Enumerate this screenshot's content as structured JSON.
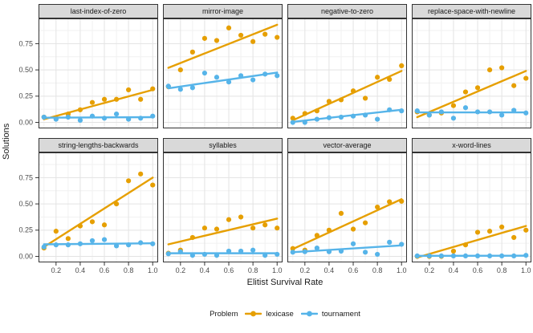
{
  "figure": {
    "ylabel": "Solutions",
    "xlabel": "Elitist Survival Rate",
    "axes": {
      "xlim": [
        0.055,
        1.045
      ],
      "ylim": [
        -0.057,
        0.99
      ],
      "xticks": [
        0.2,
        0.4,
        0.6,
        0.8,
        1.0
      ],
      "xtick_labels": [
        "0.2",
        "0.4",
        "0.6",
        "0.8",
        "1.0"
      ],
      "yticks": [
        0.0,
        0.25,
        0.5,
        0.75
      ],
      "ytick_labels": [
        "0.00",
        "0.25",
        "0.50",
        "0.75"
      ],
      "x_minor": [
        0.1,
        0.3,
        0.5,
        0.7,
        0.9
      ],
      "y_minor": [
        0.125,
        0.375,
        0.625,
        0.875
      ],
      "grid": "on"
    },
    "legend": {
      "title": "Problem",
      "position": "bottom",
      "series": [
        {
          "name": "lexicase",
          "color": "#E69F00"
        },
        {
          "name": "tournament",
          "color": "#56B4E9"
        }
      ]
    },
    "colors": {
      "grid_major": "#E3E3E3",
      "grid_minor": "#F1F1F1",
      "panel_border": "#333333",
      "strip_fill": "#D9D9D9",
      "tick": "#333333"
    }
  },
  "chart_data": [
    {
      "type": "scatter",
      "title": "last-index-of-zero",
      "x": [
        0.1,
        0.2,
        0.3,
        0.4,
        0.5,
        0.6,
        0.7,
        0.8,
        0.9,
        1.0
      ],
      "series": [
        {
          "name": "lexicase",
          "color": "#E69F00",
          "values": [
            0.05,
            0.04,
            0.08,
            0.12,
            0.19,
            0.22,
            0.22,
            0.31,
            0.22,
            0.32
          ],
          "trend": [
            0.03,
            0.31
          ]
        },
        {
          "name": "tournament",
          "color": "#56B4E9",
          "values": [
            0.05,
            0.03,
            0.05,
            0.02,
            0.06,
            0.04,
            0.08,
            0.03,
            0.04,
            0.06
          ],
          "trend": [
            0.045,
            0.05
          ]
        }
      ]
    },
    {
      "type": "scatter",
      "title": "mirror-image",
      "x": [
        0.1,
        0.2,
        0.3,
        0.4,
        0.5,
        0.6,
        0.7,
        0.8,
        0.9,
        1.0
      ],
      "series": [
        {
          "name": "lexicase",
          "color": "#E69F00",
          "values": [
            0.34,
            0.5,
            0.67,
            0.8,
            0.78,
            0.9,
            0.83,
            0.77,
            0.84,
            0.81
          ],
          "trend": [
            0.52,
            0.93
          ]
        },
        {
          "name": "tournament",
          "color": "#56B4E9",
          "values": [
            0.345,
            0.315,
            0.33,
            0.47,
            0.43,
            0.385,
            0.445,
            0.405,
            0.46,
            0.445
          ],
          "trend": [
            0.325,
            0.475
          ]
        }
      ]
    },
    {
      "type": "scatter",
      "title": "negative-to-zero",
      "x": [
        0.1,
        0.2,
        0.3,
        0.4,
        0.5,
        0.6,
        0.7,
        0.8,
        0.9,
        1.0
      ],
      "series": [
        {
          "name": "lexicase",
          "color": "#E69F00",
          "values": [
            0.04,
            0.085,
            0.11,
            0.2,
            0.215,
            0.3,
            0.23,
            0.43,
            0.41,
            0.54
          ],
          "trend": [
            0.02,
            0.49
          ]
        },
        {
          "name": "tournament",
          "color": "#56B4E9",
          "values": [
            0.0,
            0.0,
            0.03,
            0.045,
            0.05,
            0.06,
            0.07,
            0.03,
            0.12,
            0.11
          ],
          "trend": [
            0.005,
            0.12
          ]
        }
      ]
    },
    {
      "type": "scatter",
      "title": "replace-space-with-newline",
      "x": [
        0.1,
        0.2,
        0.3,
        0.4,
        0.5,
        0.6,
        0.7,
        0.8,
        0.9,
        1.0
      ],
      "series": [
        {
          "name": "lexicase",
          "color": "#E69F00",
          "values": [
            0.1,
            0.07,
            0.09,
            0.16,
            0.29,
            0.33,
            0.5,
            0.52,
            0.35,
            0.42
          ],
          "trend": [
            0.05,
            0.49
          ]
        },
        {
          "name": "tournament",
          "color": "#56B4E9",
          "values": [
            0.11,
            0.07,
            0.1,
            0.04,
            0.14,
            0.1,
            0.1,
            0.07,
            0.115,
            0.09
          ],
          "trend": [
            0.095,
            0.095
          ]
        }
      ]
    },
    {
      "type": "scatter",
      "title": "string-lengths-backwards",
      "x": [
        0.1,
        0.2,
        0.3,
        0.4,
        0.5,
        0.6,
        0.7,
        0.8,
        0.9,
        1.0
      ],
      "series": [
        {
          "name": "lexicase",
          "color": "#E69F00",
          "values": [
            0.08,
            0.24,
            0.17,
            0.29,
            0.33,
            0.3,
            0.5,
            0.72,
            0.785,
            0.68
          ],
          "trend": [
            0.09,
            0.75
          ]
        },
        {
          "name": "tournament",
          "color": "#56B4E9",
          "values": [
            0.09,
            0.11,
            0.11,
            0.12,
            0.15,
            0.16,
            0.1,
            0.11,
            0.13,
            0.12
          ],
          "trend": [
            0.115,
            0.125
          ]
        }
      ]
    },
    {
      "type": "scatter",
      "title": "syllables",
      "x": [
        0.1,
        0.2,
        0.3,
        0.4,
        0.5,
        0.6,
        0.7,
        0.8,
        0.9,
        1.0
      ],
      "series": [
        {
          "name": "lexicase",
          "color": "#E69F00",
          "values": [
            0.03,
            0.06,
            0.18,
            0.27,
            0.26,
            0.35,
            0.375,
            0.27,
            0.3,
            0.27
          ],
          "trend": [
            0.115,
            0.36
          ]
        },
        {
          "name": "tournament",
          "color": "#56B4E9",
          "values": [
            0.025,
            0.045,
            0.01,
            0.02,
            0.01,
            0.05,
            0.05,
            0.06,
            0.01,
            0.02
          ],
          "trend": [
            0.03,
            0.03
          ]
        }
      ]
    },
    {
      "type": "scatter",
      "title": "vector-average",
      "x": [
        0.1,
        0.2,
        0.3,
        0.4,
        0.5,
        0.6,
        0.7,
        0.8,
        0.9,
        1.0
      ],
      "series": [
        {
          "name": "lexicase",
          "color": "#E69F00",
          "values": [
            0.075,
            0.06,
            0.2,
            0.25,
            0.41,
            0.26,
            0.32,
            0.47,
            0.52,
            0.525
          ],
          "trend": [
            0.07,
            0.545
          ]
        },
        {
          "name": "tournament",
          "color": "#56B4E9",
          "values": [
            0.04,
            0.045,
            0.08,
            0.045,
            0.05,
            0.12,
            0.04,
            0.02,
            0.135,
            0.115
          ],
          "trend": [
            0.04,
            0.105
          ]
        }
      ]
    },
    {
      "type": "scatter",
      "title": "x-word-lines",
      "x": [
        0.1,
        0.2,
        0.3,
        0.4,
        0.5,
        0.6,
        0.7,
        0.8,
        0.9,
        1.0
      ],
      "series": [
        {
          "name": "lexicase",
          "color": "#E69F00",
          "values": [
            0.0,
            0.0,
            0.0,
            0.05,
            0.11,
            0.23,
            0.24,
            0.28,
            0.18,
            0.25
          ],
          "trend": [
            -0.01,
            0.29
          ]
        },
        {
          "name": "tournament",
          "color": "#56B4E9",
          "values": [
            0.005,
            0.005,
            0.005,
            0.005,
            0.005,
            0.005,
            0.005,
            0.005,
            0.005,
            0.01
          ],
          "trend": [
            0.005,
            0.007
          ]
        }
      ]
    }
  ]
}
